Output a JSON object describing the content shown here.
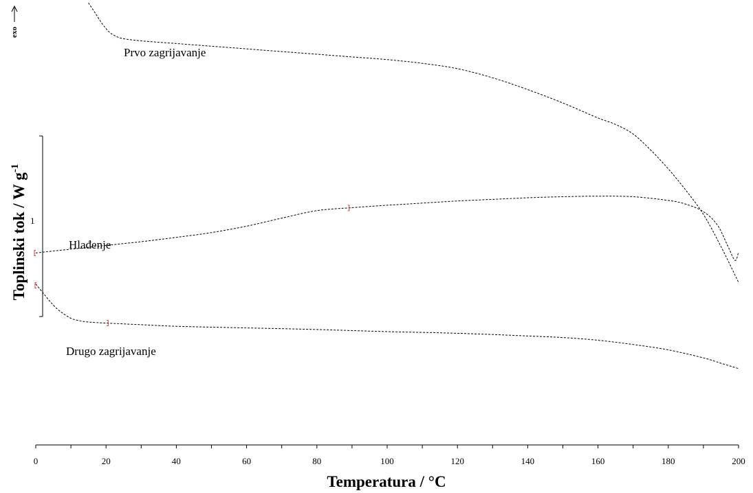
{
  "chart_data": {
    "type": "line",
    "xlabel": "Temperatura / °C",
    "ylabel_main": "Toplinski tok / W g",
    "ylabel_sup": "-1",
    "exo_label": "exo",
    "xlim": [
      0,
      200
    ],
    "x_ticks": [
      0,
      20,
      40,
      60,
      80,
      100,
      120,
      140,
      160,
      180,
      200
    ],
    "scale_bar_label": "1",
    "series": [
      {
        "name": "Prvo zagrijavanje",
        "x": [
          15,
          17,
          19,
          21,
          23,
          25,
          30,
          40,
          50,
          60,
          70,
          80,
          90,
          100,
          110,
          120,
          130,
          140,
          150,
          160,
          165,
          170,
          175,
          180,
          185,
          190,
          195,
          200
        ],
        "y": [
          4.05,
          3.85,
          3.65,
          3.5,
          3.42,
          3.38,
          3.34,
          3.29,
          3.24,
          3.19,
          3.14,
          3.09,
          3.04,
          2.99,
          2.92,
          2.82,
          2.65,
          2.43,
          2.18,
          1.9,
          1.78,
          1.6,
          1.3,
          0.95,
          0.55,
          0.1,
          -0.5,
          -1.17
        ]
      },
      {
        "name": "Hlađenje",
        "x": [
          0,
          10,
          20,
          30,
          40,
          50,
          60,
          70,
          80,
          89,
          100,
          110,
          120,
          130,
          140,
          150,
          160,
          170,
          180,
          185,
          190,
          194,
          197,
          199,
          200
        ],
        "y": [
          -0.62,
          -0.55,
          -0.48,
          -0.41,
          -0.33,
          -0.24,
          -0.12,
          0.03,
          0.17,
          0.22,
          0.27,
          0.31,
          0.35,
          0.38,
          0.41,
          0.43,
          0.44,
          0.43,
          0.36,
          0.29,
          0.15,
          -0.1,
          -0.5,
          -0.76,
          -0.6
        ]
      },
      {
        "name": "Drugo zagrijavanje",
        "x": [
          0,
          2,
          4,
          6,
          8,
          10,
          12,
          15,
          20,
          30,
          40,
          60,
          80,
          100,
          120,
          140,
          150,
          160,
          170,
          180,
          190,
          195,
          200
        ],
        "y": [
          -1.2,
          -1.36,
          -1.52,
          -1.66,
          -1.76,
          -1.84,
          -1.88,
          -1.91,
          -1.93,
          -1.96,
          -1.99,
          -2.02,
          -2.05,
          -2.09,
          -2.12,
          -2.17,
          -2.2,
          -2.25,
          -2.33,
          -2.43,
          -2.58,
          -2.68,
          -2.78
        ]
      }
    ]
  }
}
